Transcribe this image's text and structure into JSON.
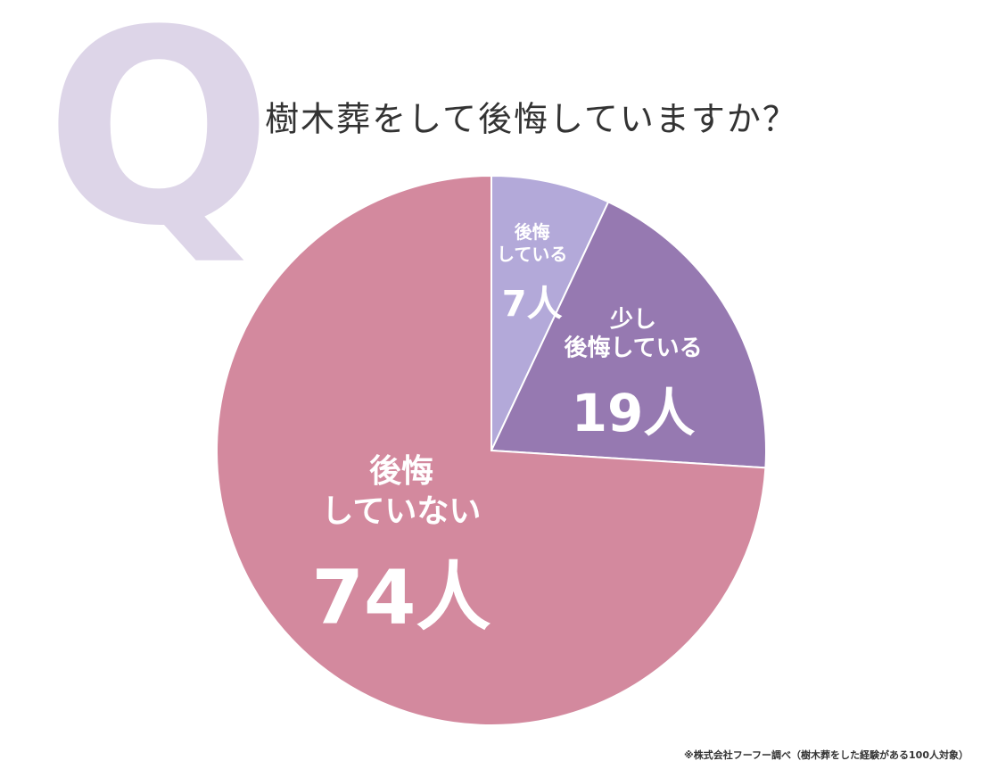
{
  "chart_data": {
    "type": "pie",
    "watermark": "Q",
    "title": "樹木葬をして後悔していますか？",
    "categories": [
      "後悔\nしている",
      "少し\n後悔している",
      "後悔\nしていない"
    ],
    "values": [
      7,
      19,
      74
    ],
    "value_labels": [
      "7人",
      "19人",
      "74人"
    ],
    "colors": [
      "#b3a9d9",
      "#9679b1",
      "#d3899e"
    ],
    "note": "※株式会社フーフー調べ（樹木葬をした経験がある100人対象）"
  }
}
